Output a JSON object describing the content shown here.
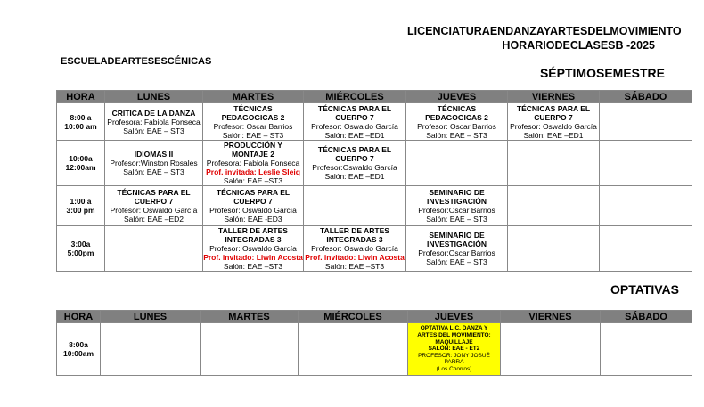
{
  "header": {
    "line1": "LICENCIATURAENDANZAYARTESDELMOVIMIENTO",
    "line2": "HORARIODECLASESB -2025",
    "school": "ESCUELADEARTESESCÉNICAS",
    "semester": "SÉPTIMOSEMESTRE"
  },
  "days": [
    "HORA",
    "LUNES",
    "MARTES",
    "MIÉRCOLES",
    "JUEVES",
    "VIERNES",
    "SÁBADO"
  ],
  "rows": [
    {
      "hora": [
        "8:00 a",
        "10:00 am"
      ],
      "cells": [
        {
          "title": [
            "CRITICA DE LA DANZA"
          ],
          "prof": "Profesora: Fabiola Fonseca",
          "salon": "Salón: EAE – ST3"
        },
        {
          "title": [
            "TÉCNICAS",
            "PEDAGOGICAS 2"
          ],
          "prof": "Profesor: Oscar Barrios",
          "salon": "Salón: EAE – ST3"
        },
        {
          "title": [
            "TÉCNICAS PARA EL",
            "CUERPO 7"
          ],
          "prof": "Profesor: Oswaldo García",
          "salon": "Salón: EAE –ED1"
        },
        {
          "title": [
            "TÉCNICAS",
            "PEDAGOGICAS 2"
          ],
          "prof": "Profesor: Oscar Barrios",
          "salon": "Salón: EAE – ST3"
        },
        {
          "title": [
            "TÉCNICAS PARA EL",
            "CUERPO 7"
          ],
          "prof": "Profesor: Oswaldo García",
          "salon": "Salón: EAE –ED1"
        },
        null
      ]
    },
    {
      "hora": [
        "10:00a",
        "12:00am"
      ],
      "cells": [
        {
          "title": [
            "IDIOMAS II"
          ],
          "prof": "Profesor:Winston Rosales",
          "salon": "Salón: EAE – ST3"
        },
        {
          "title": [
            "PRODUCCIÓN Y",
            "MONTAJE 2"
          ],
          "prof": "Profesora: Fabiola Fonseca",
          "guest": "Prof. invitada: Leslie Sleiq",
          "salon": "Salón: EAE –ST3"
        },
        {
          "title": [
            "TÉCNICAS PARA EL",
            "CUERPO 7"
          ],
          "prof": "Profesor:Oswaldo García",
          "salon": "Salón: EAE –ED1"
        },
        null,
        null,
        null
      ]
    },
    {
      "hora": [
        "1:00 a",
        "3:00 pm"
      ],
      "cells": [
        {
          "title": [
            "TÉCNICAS PARA EL",
            "CUERPO 7"
          ],
          "prof": "Profesor: Oswaldo García",
          "salon": "Salón: EAE –ED2"
        },
        {
          "title": [
            "TÉCNICAS PARA EL",
            "CUERPO 7"
          ],
          "prof": "Profesor: Oswaldo García",
          "salon": "Salón: EAE -ED3"
        },
        null,
        {
          "title": [
            "SEMINARIO DE",
            "INVESTIGACIÓN"
          ],
          "prof": "Profesor:Oscar Barrios",
          "salon": "Salón: EAE – ST3"
        },
        null,
        null
      ]
    },
    {
      "hora": [
        "3:00a",
        "5:00pm"
      ],
      "cells": [
        null,
        {
          "title": [
            "TALLER DE ARTES",
            "INTEGRADAS 3"
          ],
          "prof": "Profesor: Oswaldo García",
          "guest": "Prof. invitado: Liwin Acosta",
          "salon": "Salón: EAE  –ST3"
        },
        {
          "title": [
            "TALLER DE ARTES",
            "INTEGRADAS 3"
          ],
          "prof": "Profesor: Oswaldo García",
          "guest": "Prof. invitado: Liwin Acosta",
          "salon": "Salón: EAE  –ST3"
        },
        {
          "title": [
            "SEMINARIO DE",
            "INVESTIGACIÓN"
          ],
          "prof": "Profesor:Oscar Barrios",
          "salon": "Salón: EAE – ST3"
        },
        null,
        null
      ]
    }
  ],
  "optativas": {
    "title": "OPTATIVAS",
    "hora": [
      "8:00a",
      "10:00am"
    ],
    "cell": {
      "title": [
        "OPTATIVA LIC. DANZA Y",
        "ARTES DEL MOVIMIENTO:",
        "MAQUILLAJE",
        "SALÓN: EAE - ET2"
      ],
      "prof": [
        "PROFESOR: JONY JOSUÉ",
        "PARRA",
        "(Los Chorros)"
      ]
    },
    "highlight_color": "#ffff00"
  }
}
